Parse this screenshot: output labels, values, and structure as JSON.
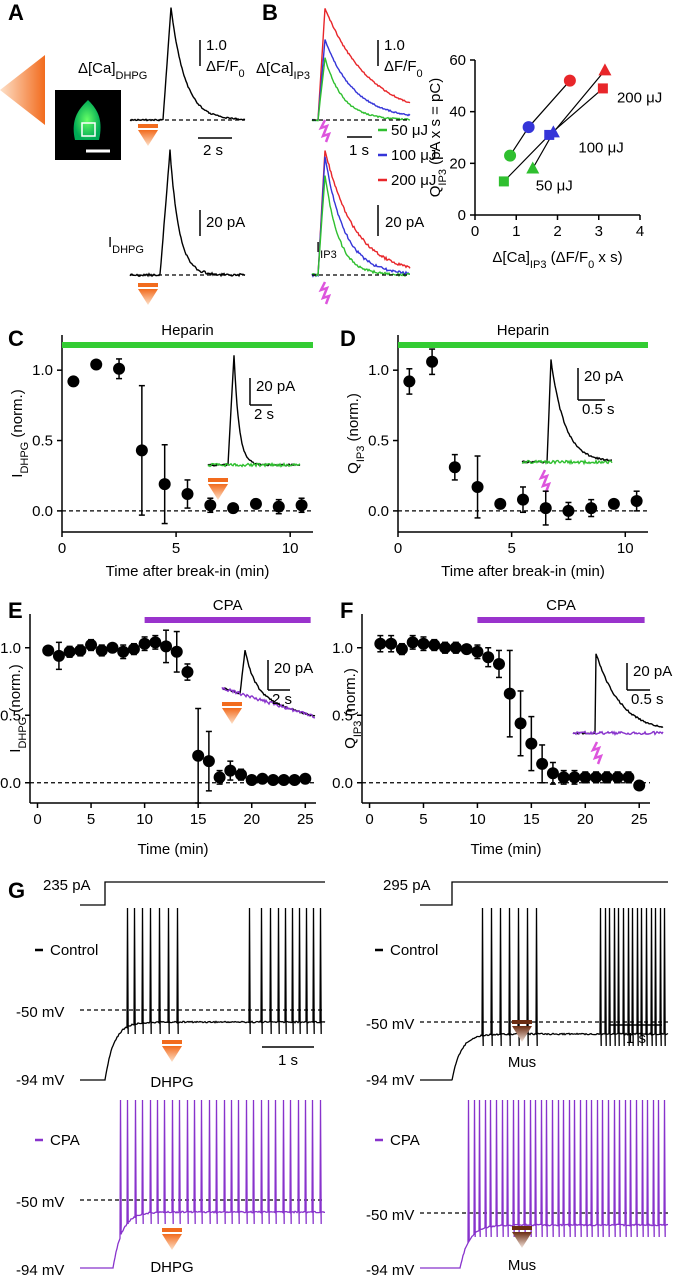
{
  "panel_labels": [
    "A",
    "B",
    "C",
    "D",
    "E",
    "F",
    "G"
  ],
  "panel_a": {
    "ca_label": [
      {
        "text": "Δ[Ca]"
      },
      {
        "text": "DHPG",
        "sub": true
      }
    ],
    "ca_scale": "1.0",
    "ca_scale_unit": [
      {
        "text": "ΔF/F"
      },
      {
        "text": "0",
        "sub": true
      }
    ],
    "time_scale": "2 s",
    "i_label": [
      {
        "text": "I"
      },
      {
        "text": "DHPG",
        "sub": true
      }
    ],
    "i_scale": "20 pA"
  },
  "panel_b": {
    "ca_label": [
      {
        "text": "Δ[Ca]"
      },
      {
        "text": "IP3",
        "sub": true
      }
    ],
    "ca_scale": "1.0",
    "ca_scale_unit": [
      {
        "text": "ΔF/F"
      },
      {
        "text": "0",
        "sub": true
      }
    ],
    "time_scale": "1 s",
    "legend": [
      "50 μJ",
      "100 μJ",
      "200 μJ"
    ],
    "legend_colors": [
      "#2fbf2f",
      "#3535d8",
      "#e8262a"
    ],
    "i_label": [
      {
        "text": "I"
      },
      {
        "text": "IP3",
        "sub": true
      }
    ],
    "i_scale": "20 pA"
  },
  "chart_data": [
    {
      "type": "scatter",
      "x_label": [
        {
          "text": "Δ[Ca]"
        },
        {
          "text": "IP3",
          "sub": true
        },
        {
          "text": " (ΔF/F"
        },
        {
          "text": "0",
          "sub": true
        },
        {
          "text": " x s)"
        }
      ],
      "y_label": [
        {
          "text": "Q"
        },
        {
          "text": "IP3",
          "sub": true
        },
        {
          "text": " (pA x s = pC)"
        }
      ],
      "markers": [
        "circle",
        "square",
        "triangle"
      ],
      "series": [
        {
          "name": "50 μJ",
          "color": "#2fbf2f",
          "x": [
            0.85,
            0.7,
            1.4
          ],
          "values": [
            23,
            13,
            18
          ]
        },
        {
          "name": "100 μJ",
          "color": "#3535d8",
          "x": [
            1.3,
            1.8,
            1.9
          ],
          "values": [
            34,
            31,
            32
          ]
        },
        {
          "name": "200 μJ",
          "color": "#e8262a",
          "x": [
            2.3,
            3.1,
            3.15
          ],
          "values": [
            52,
            49,
            56
          ]
        }
      ],
      "xlim": [
        0,
        4
      ],
      "xticks": [
        0,
        1,
        2,
        3,
        4
      ],
      "ylim": [
        0,
        60
      ],
      "yticks": [
        0,
        20,
        40,
        60
      ]
    },
    {
      "type": "errorbar",
      "y_label": [
        {
          "text": "I"
        },
        {
          "text": "DHPG",
          "sub": true
        },
        {
          "text": " (norm.)"
        }
      ],
      "x_label": "Time after break-in (min)",
      "color": "#000000",
      "bar_label": "Heparin",
      "bar_color": "#33cc33",
      "bar_range": [
        0,
        11
      ],
      "inset_scale_y": "20 pA",
      "inset_scale_x": "2 s",
      "x": [
        0.5,
        1.5,
        2.5,
        3.5,
        4.5,
        5.5,
        6.5,
        7.5,
        8.5,
        9.5,
        10.5
      ],
      "values": [
        0.92,
        1.04,
        1.01,
        0.43,
        0.19,
        0.12,
        0.04,
        0.02,
        0.05,
        0.03,
        0.04
      ],
      "errors": [
        0.02,
        0.02,
        0.07,
        0.46,
        0.28,
        0.1,
        0.05,
        0.02,
        0.03,
        0.05,
        0.05
      ],
      "xlim": [
        0,
        11
      ],
      "xticks": [
        0,
        5,
        10
      ],
      "ylim": [
        -0.15,
        1.25
      ],
      "yticks": [
        {
          "value": 0,
          "label": "0.0"
        },
        0.5,
        {
          "value": 1,
          "label": "1.0"
        }
      ]
    },
    {
      "type": "errorbar",
      "y_label": [
        {
          "text": "Q"
        },
        {
          "text": "IP3",
          "sub": true
        },
        {
          "text": " (norm.)"
        }
      ],
      "x_label": "Time after break-in (min)",
      "color": "#000000",
      "bar_label": "Heparin",
      "bar_color": "#33cc33",
      "bar_range": [
        0,
        11
      ],
      "inset_scale_y": "20 pA",
      "inset_scale_x": "0.5 s",
      "x": [
        0.5,
        1.5,
        2.5,
        3.5,
        4.5,
        5.5,
        6.5,
        7.5,
        8.5,
        9.5,
        10.5
      ],
      "values": [
        0.92,
        1.06,
        0.31,
        0.17,
        0.05,
        0.08,
        0.02,
        0.0,
        0.02,
        0.05,
        0.07
      ],
      "errors": [
        0.09,
        0.09,
        0.09,
        0.22,
        0.02,
        0.09,
        0.12,
        0.06,
        0.06,
        0.03,
        0.07
      ],
      "xlim": [
        0,
        11
      ],
      "xticks": [
        0,
        5,
        10
      ],
      "ylim": [
        -0.15,
        1.25
      ],
      "yticks": [
        {
          "value": 0,
          "label": "0.0"
        },
        0.5,
        {
          "value": 1,
          "label": "1.0"
        }
      ]
    },
    {
      "type": "errorbar",
      "y_label": [
        {
          "text": "I"
        },
        {
          "text": "DHPG",
          "sub": true
        },
        {
          "text": " (norm.)"
        }
      ],
      "x_label": "Time (min)",
      "color": "#000000",
      "bar_label": "CPA",
      "bar_color": "#9933cc",
      "bar_range": [
        10,
        25.5
      ],
      "inset_scale_y": "20 pA",
      "inset_scale_x": "2 s",
      "x": [
        1,
        2,
        3,
        4,
        5,
        6,
        7,
        8,
        9,
        10,
        11,
        12,
        13,
        14,
        15,
        16,
        17,
        18,
        19,
        20,
        21,
        22,
        23,
        24,
        25
      ],
      "values": [
        0.98,
        0.94,
        0.97,
        0.98,
        1.02,
        0.98,
        1.0,
        0.97,
        0.99,
        1.03,
        1.04,
        1.01,
        0.97,
        0.82,
        0.2,
        0.16,
        0.04,
        0.09,
        0.06,
        0.02,
        0.03,
        0.02,
        0.02,
        0.02,
        0.03
      ],
      "errors": [
        0.03,
        0.1,
        0.04,
        0.04,
        0.04,
        0.04,
        0.03,
        0.05,
        0.04,
        0.05,
        0.05,
        0.12,
        0.15,
        0.06,
        0.35,
        0.22,
        0.05,
        0.07,
        0.04,
        0.03,
        0.02,
        0.02,
        0.02,
        0.02,
        0.02
      ],
      "xlim": [
        -0.7,
        26
      ],
      "xticks": [
        0,
        5,
        10,
        15,
        20,
        25
      ],
      "ylim": [
        -0.15,
        1.25
      ],
      "yticks": [
        {
          "value": 0,
          "label": "0.0"
        },
        0.5,
        {
          "value": 1,
          "label": "1.0"
        }
      ]
    },
    {
      "type": "errorbar",
      "y_label": [
        {
          "text": "Q"
        },
        {
          "text": "IP3",
          "sub": true
        },
        {
          "text": " (norm.)"
        }
      ],
      "x_label": "Time (min)",
      "color": "#000000",
      "bar_label": "CPA",
      "bar_color": "#9933cc",
      "bar_range": [
        10,
        25.5
      ],
      "inset_scale_y": "20 pA",
      "inset_scale_x": "0.5 s",
      "x": [
        1,
        2,
        3,
        4,
        5,
        6,
        7,
        8,
        9,
        10,
        11,
        12,
        13,
        14,
        15,
        16,
        17,
        18,
        19,
        20,
        21,
        22,
        23,
        24,
        25
      ],
      "values": [
        1.03,
        1.03,
        0.99,
        1.04,
        1.03,
        1.02,
        1.0,
        1.0,
        0.99,
        0.97,
        0.93,
        0.88,
        0.66,
        0.44,
        0.29,
        0.14,
        0.07,
        0.04,
        0.04,
        0.04,
        0.04,
        0.04,
        0.04,
        0.04,
        -0.02
      ],
      "errors": [
        0.06,
        0.06,
        0.04,
        0.05,
        0.05,
        0.04,
        0.04,
        0.04,
        0.03,
        0.05,
        0.07,
        0.1,
        0.32,
        0.24,
        0.2,
        0.14,
        0.08,
        0.05,
        0.05,
        0.04,
        0.04,
        0.04,
        0.04,
        0.04,
        0.01
      ],
      "xlim": [
        -0.7,
        26
      ],
      "xticks": [
        0,
        5,
        10,
        15,
        20,
        25
      ],
      "ylim": [
        -0.15,
        1.25
      ],
      "yticks": [
        {
          "value": 0,
          "label": "0.0"
        },
        0.5,
        {
          "value": 1,
          "label": "1.0"
        }
      ]
    }
  ],
  "panel_g": {
    "left": {
      "step": "235 pA",
      "control": "Control",
      "cpa": "CPA",
      "top_v_threshold": "-50 mV",
      "top_v_rest": "-94 mV",
      "bottom_v_threshold": "-50 mV",
      "bottom_v_rest": "-94 mV",
      "top_drug": "DHPG",
      "bottom_drug": "DHPG",
      "scale": "1 s"
    },
    "right": {
      "step": "295 pA",
      "control": "Control",
      "cpa": "CPA",
      "top_v_threshold": "-50 mV",
      "top_v_rest": "-94 mV",
      "bottom_v_threshold": "-50 mV",
      "bottom_v_rest": "-94 mV",
      "top_drug": "Mus",
      "bottom_drug": "Mus",
      "scale": "1 s"
    }
  }
}
